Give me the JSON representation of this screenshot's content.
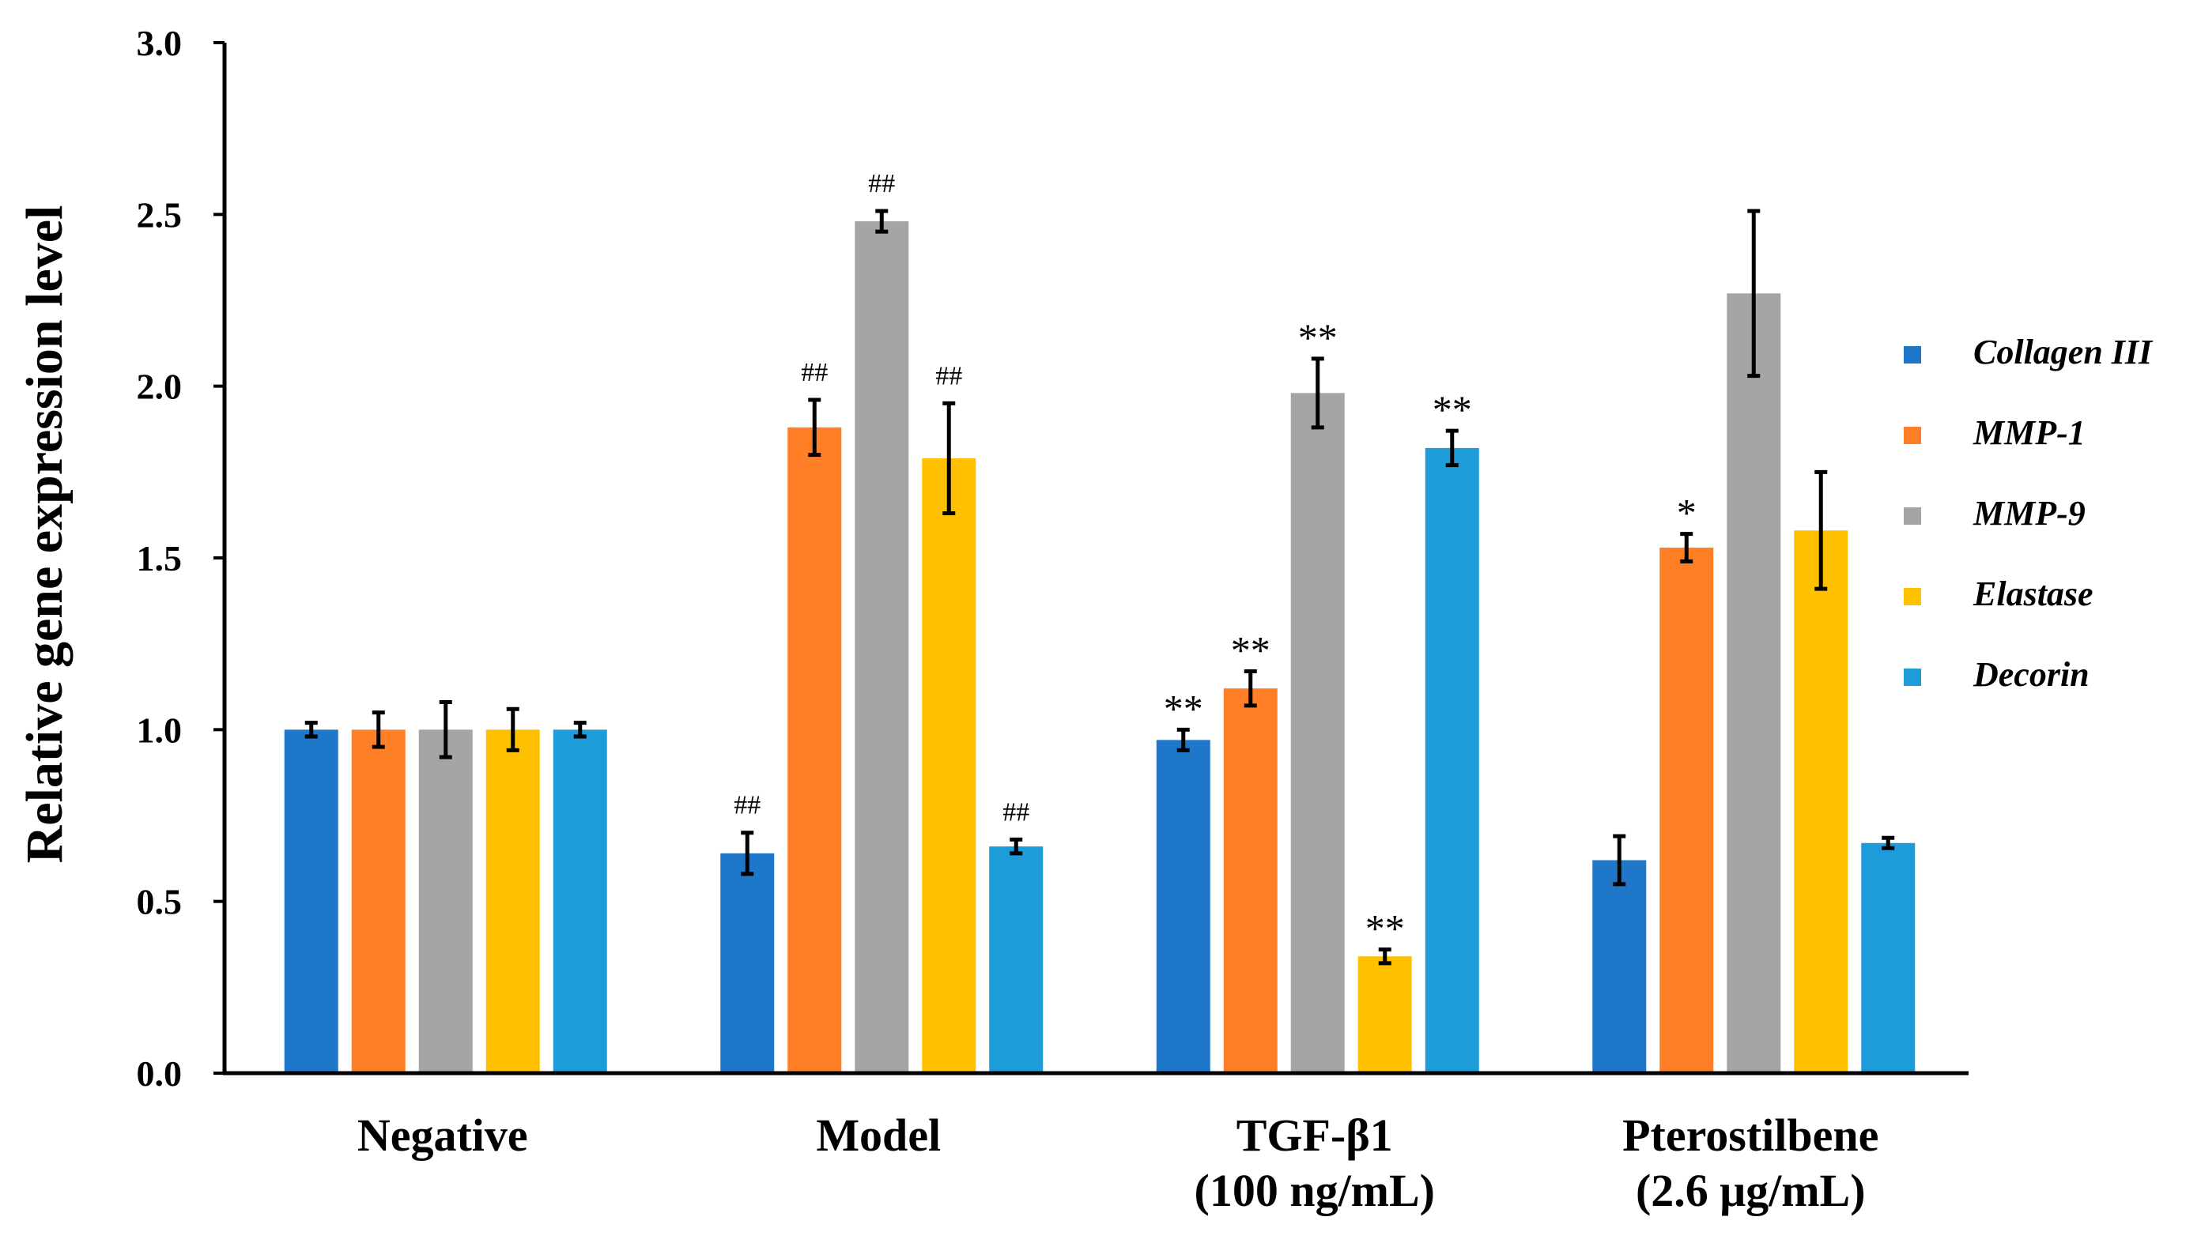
{
  "chart_data": {
    "type": "bar",
    "ylabel": "Relative gene expression level",
    "ylim": [
      0,
      3.0
    ],
    "yticks": [
      "0.0",
      "0.5",
      "1.0",
      "1.5",
      "2.0",
      "2.5",
      "3.0"
    ],
    "ytick_values": [
      0,
      0.5,
      1.0,
      1.5,
      2.0,
      2.5,
      3.0
    ],
    "grid": false,
    "legend_position": "right",
    "categories": [
      [
        "Negative"
      ],
      [
        "Model"
      ],
      [
        "TGF-β1",
        "(100 ng/mL)"
      ],
      [
        "Pterostilbene",
        "(2.6 μg/mL)"
      ]
    ],
    "series": [
      {
        "name": "Collagen III",
        "color": "#1F77C9",
        "values": [
          1.0,
          0.64,
          0.97,
          0.62
        ],
        "errors": [
          0.02,
          0.06,
          0.03,
          0.07
        ],
        "annotations": [
          "",
          "##",
          "**",
          ""
        ]
      },
      {
        "name": "MMP-1",
        "color": "#FF7F27",
        "values": [
          1.0,
          1.88,
          1.12,
          1.53
        ],
        "errors": [
          0.05,
          0.08,
          0.05,
          0.04
        ],
        "annotations": [
          "",
          "##",
          "**",
          "*"
        ]
      },
      {
        "name": "MMP-9",
        "color": "#A5A5A5",
        "values": [
          1.0,
          2.48,
          1.98,
          2.27
        ],
        "errors": [
          0.08,
          0.03,
          0.1,
          0.24
        ],
        "annotations": [
          "",
          "##",
          "**",
          ""
        ]
      },
      {
        "name": "Elastase",
        "color": "#FFC000",
        "values": [
          1.0,
          1.79,
          0.34,
          1.58
        ],
        "errors": [
          0.06,
          0.16,
          0.02,
          0.17
        ],
        "annotations": [
          "",
          "##",
          "**",
          ""
        ]
      },
      {
        "name": "Decorin",
        "color": "#1E9CDA",
        "values": [
          1.0,
          0.66,
          1.82,
          0.67
        ],
        "errors": [
          0.02,
          0.02,
          0.05,
          0.015
        ],
        "annotations": [
          "",
          "##",
          "**",
          ""
        ]
      }
    ]
  }
}
